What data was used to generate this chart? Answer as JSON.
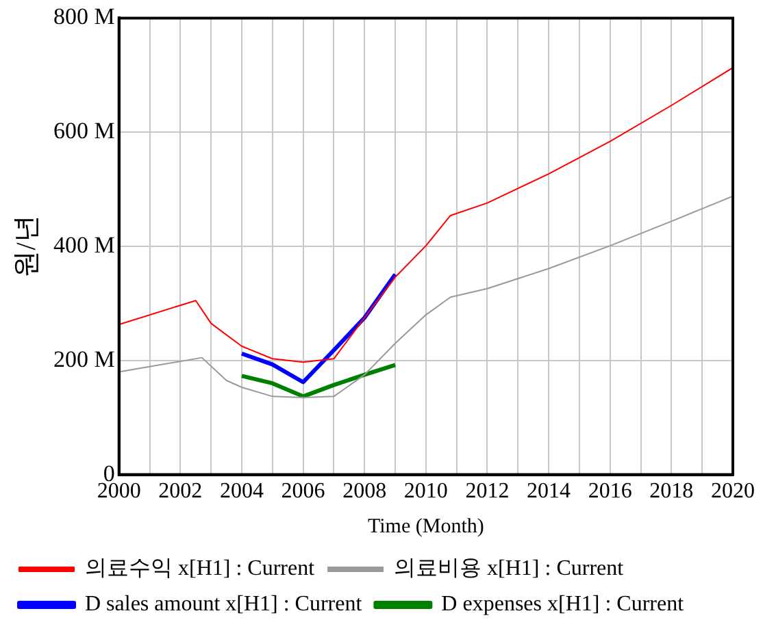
{
  "chart_data": {
    "type": "line",
    "xlabel": "Time (Month)",
    "ylabel": "원/년",
    "xlim": [
      2000,
      2020
    ],
    "xticks": [
      2000,
      {
        "value": 2001,
        "label": null
      },
      2002,
      {
        "value": 2003,
        "label": null
      },
      2004,
      {
        "value": 2005,
        "label": null
      },
      2006,
      {
        "value": 2007,
        "label": null
      },
      2008,
      {
        "value": 2009,
        "label": null
      },
      2010,
      {
        "value": 2011,
        "label": null
      },
      2012,
      {
        "value": 2013,
        "label": null
      },
      2014,
      {
        "value": 2015,
        "label": null
      },
      2016,
      {
        "value": 2017,
        "label": null
      },
      2018,
      {
        "value": 2019,
        "label": null
      },
      2020
    ],
    "ylim": [
      0,
      800000000
    ],
    "yticks": [
      {
        "value": 0,
        "label": "0"
      },
      {
        "value": 200000000,
        "label": "200 M"
      },
      {
        "value": 400000000,
        "label": "400 M"
      },
      {
        "value": 600000000,
        "label": "600 M"
      },
      {
        "value": 800000000,
        "label": "800 M"
      }
    ],
    "grid": true,
    "legend": "bottom",
    "marker": "none",
    "line_style": "solid",
    "series": [
      {
        "name": "D sales amount x[H1] : Current",
        "color": "#0000ff",
        "x": [
          2004,
          2005,
          2006,
          2007,
          2008,
          2009
        ],
        "values": [
          212000000,
          193000000,
          162000000,
          218000000,
          275000000,
          351000000
        ]
      },
      {
        "name": "의료수익 x[H1] : Current",
        "color": "#ff0000",
        "x": [
          2000,
          2002.5,
          2003,
          2004,
          2005,
          2006,
          2007,
          2008,
          2009,
          2010,
          2010.8,
          2012,
          2014,
          2016,
          2018,
          2020
        ],
        "values": [
          263000000,
          305000000,
          265000000,
          225000000,
          203000000,
          197000000,
          203000000,
          275000000,
          346000000,
          401000000,
          454000000,
          476000000,
          527000000,
          584000000,
          647000000,
          713000000
        ]
      },
      {
        "name": "D expenses x[H1] : Current",
        "color": "#008000",
        "x": [
          2004,
          2005,
          2006,
          2007,
          2008,
          2009
        ],
        "values": [
          173000000,
          160000000,
          137000000,
          157000000,
          175000000,
          192000000
        ]
      },
      {
        "name": "의료비용 x[H1] : Current",
        "color": "#999999",
        "x": [
          2000,
          2002.7,
          2003.5,
          2004,
          2005,
          2006,
          2007,
          2008,
          2009,
          2010,
          2010.8,
          2012,
          2014,
          2016,
          2018,
          2020
        ],
        "values": [
          180000000,
          205000000,
          165000000,
          153000000,
          137000000,
          135000000,
          137000000,
          175000000,
          230000000,
          280000000,
          311000000,
          326000000,
          361000000,
          401000000,
          444000000,
          488000000
        ]
      }
    ]
  }
}
